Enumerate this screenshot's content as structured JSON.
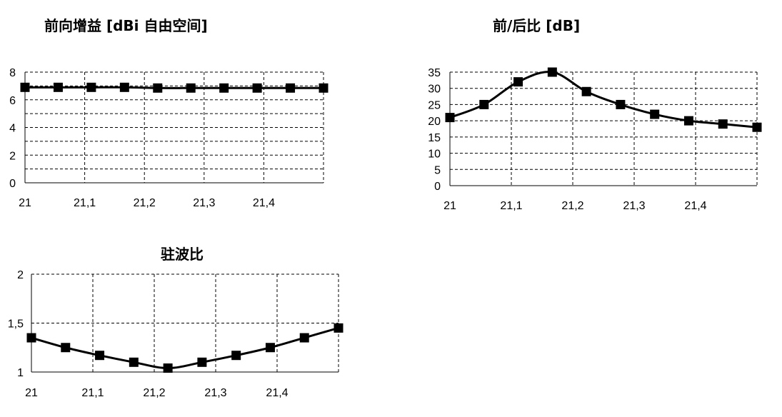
{
  "chart_data": [
    {
      "type": "line",
      "title": "前向增益 [dBi 自由空间]",
      "x": [
        "21",
        "21,05",
        "21,1",
        "21,15",
        "21,2",
        "21,25",
        "21,3",
        "21,35",
        "21,4",
        "21,45"
      ],
      "xticks": [
        "21",
        "21,1",
        "21,2",
        "21,3",
        "21,4"
      ],
      "yticks": [
        "0",
        "2",
        "4",
        "6",
        "8"
      ],
      "ylim": [
        0,
        8
      ],
      "grid": true,
      "series": [
        {
          "values": [
            6.9,
            6.9,
            6.9,
            6.9,
            6.85,
            6.85,
            6.85,
            6.85,
            6.85,
            6.85
          ]
        }
      ]
    },
    {
      "type": "line",
      "title": "前/后比 [dB]",
      "x": [
        "21",
        "21,05",
        "21,1",
        "21,15",
        "21,2",
        "21,25",
        "21,3",
        "21,35",
        "21,4",
        "21,45"
      ],
      "xticks": [
        "21",
        "21,1",
        "21,2",
        "21,3",
        "21,4"
      ],
      "yticks": [
        "0",
        "5",
        "10",
        "15",
        "20",
        "25",
        "30",
        "35"
      ],
      "ylim": [
        0,
        35
      ],
      "grid": true,
      "series": [
        {
          "values": [
            21,
            25,
            32,
            35,
            29,
            25,
            22,
            20,
            19,
            18
          ]
        }
      ]
    },
    {
      "type": "line",
      "title": "驻波比",
      "x": [
        "21",
        "21,05",
        "21,1",
        "21,15",
        "21,2",
        "21,25",
        "21,3",
        "21,35",
        "21,4",
        "21,45"
      ],
      "xticks": [
        "21",
        "21,1",
        "21,2",
        "21,3",
        "21,4"
      ],
      "yticks": [
        "1",
        "1,5",
        "2"
      ],
      "ylim": [
        1,
        2
      ],
      "grid": true,
      "series": [
        {
          "values": [
            1.35,
            1.25,
            1.17,
            1.1,
            1.04,
            1.1,
            1.17,
            1.25,
            1.35,
            1.45
          ]
        }
      ]
    }
  ]
}
